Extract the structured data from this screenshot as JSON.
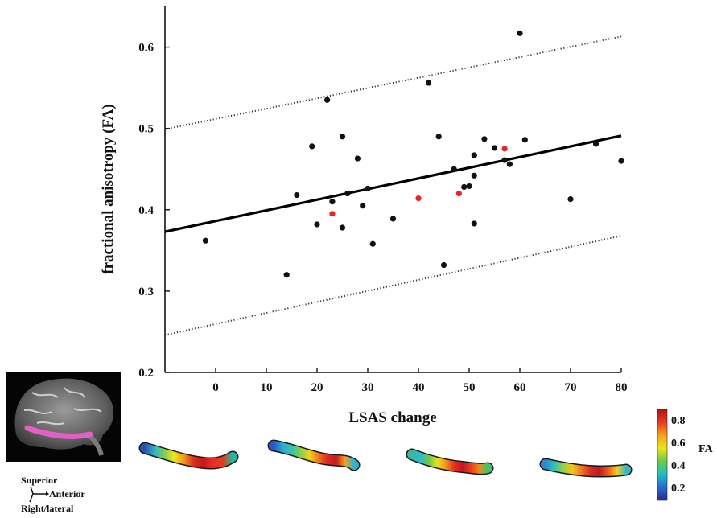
{
  "chart_data": {
    "type": "scatter",
    "title": "",
    "xlabel": "LSAS change",
    "ylabel": "fractional anisotropy (FA)",
    "xlim": [
      -10,
      80
    ],
    "ylim": [
      0.2,
      0.65
    ],
    "xticks": [
      0,
      10,
      20,
      30,
      40,
      50,
      60,
      70,
      80
    ],
    "yticks": [
      0.2,
      0.3,
      0.4,
      0.5,
      0.6
    ],
    "xtick_labels": [
      "0",
      "10",
      "20",
      "30",
      "40",
      "50",
      "60",
      "70",
      "80"
    ],
    "ytick_labels": [
      "0.2",
      "0.3",
      "0.4",
      "0.5",
      "0.6"
    ],
    "grid": false,
    "series": [
      {
        "color": "#111111",
        "x": [
          -2,
          14,
          16,
          19,
          20,
          22,
          23,
          25,
          25,
          26,
          28,
          29,
          30,
          31,
          35,
          42,
          44,
          45,
          47,
          49,
          50,
          51,
          51,
          51,
          53,
          55,
          57,
          58,
          60,
          61,
          70,
          75,
          80
        ],
        "y": [
          0.362,
          0.32,
          0.418,
          0.478,
          0.382,
          0.535,
          0.41,
          0.49,
          0.378,
          0.42,
          0.463,
          0.405,
          0.426,
          0.358,
          0.389,
          0.556,
          0.49,
          0.332,
          0.45,
          0.428,
          0.429,
          0.467,
          0.442,
          0.383,
          0.487,
          0.476,
          0.461,
          0.456,
          0.617,
          0.486,
          0.413,
          0.481,
          0.46
        ]
      },
      {
        "color": "#e8232a",
        "x": [
          23,
          40,
          48,
          57
        ],
        "y": [
          0.395,
          0.414,
          0.42,
          0.475
        ]
      }
    ],
    "regression_line": {
      "x": [
        -10,
        80
      ],
      "y": [
        0.373,
        0.491
      ]
    },
    "confidence_upper": {
      "x": [
        -10,
        80
      ],
      "y": [
        0.499,
        0.613
      ]
    },
    "confidence_lower": {
      "x": [
        -10,
        80
      ],
      "y": [
        0.246,
        0.368
      ]
    }
  },
  "colorbar": {
    "label": "FA",
    "ticks": [
      "0.8",
      "0.6",
      "0.4",
      "0.2"
    ],
    "colors": [
      "#b0141c",
      "#e83a24",
      "#f6a31c",
      "#e9e61e",
      "#6cc94a",
      "#1cc0c4",
      "#2a6ad0",
      "#2a2a8e"
    ]
  },
  "orientation": {
    "superior": "Superior",
    "anterior": "Anterior",
    "right_lateral": "Right/lateral"
  },
  "tract_gradients": [
    [
      "#2d4fb3",
      "#2fb3c9",
      "#7fd04a",
      "#efe51f",
      "#f29a1b",
      "#dd2c22",
      "#c2191f",
      "#ef2d20",
      "#e03c1e",
      "#1db9a0"
    ],
    [
      "#2a55c4",
      "#2fa7d4",
      "#31c4b0",
      "#86cf45",
      "#f0d21c",
      "#ee7a1e",
      "#dc2a22",
      "#c71a1f",
      "#f3a11c",
      "#2eb3d2"
    ],
    [
      "#3bb79a",
      "#2ebad0",
      "#6bc84a",
      "#e8e21d",
      "#f2961c",
      "#e2321f",
      "#c8171f",
      "#ed3c1f",
      "#f08a1c",
      "#41c36a"
    ],
    [
      "#2c88d2",
      "#31c2b6",
      "#98d240",
      "#f2c41c",
      "#f07a1e",
      "#db2d21",
      "#c31a1f",
      "#ef5a1f",
      "#f4cf1c",
      "#34b8c4"
    ]
  ]
}
